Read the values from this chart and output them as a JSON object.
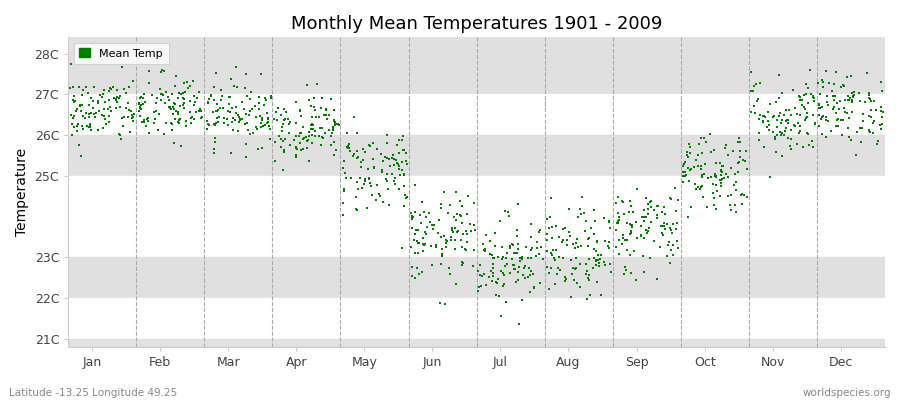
{
  "title": "Monthly Mean Temperatures 1901 - 2009",
  "ylabel": "Temperature",
  "xlabel_bottom_left": "Latitude -13.25 Longitude 49.25",
  "xlabel_bottom_right": "worldspecies.org",
  "ytick_labels": [
    "21C",
    "22C",
    "23C",
    "25C",
    "26C",
    "27C",
    "28C"
  ],
  "ytick_values": [
    21,
    22,
    23,
    25,
    26,
    27,
    28
  ],
  "ylim": [
    20.8,
    28.4
  ],
  "months": [
    "Jan",
    "Feb",
    "Mar",
    "Apr",
    "May",
    "Jun",
    "Jul",
    "Aug",
    "Sep",
    "Oct",
    "Nov",
    "Dec"
  ],
  "dot_color": "#008000",
  "background_color": "#ffffff",
  "band_color": "#e8e8e8",
  "plot_bg_bands": [
    {
      "ymin": 27,
      "ymax": 28.4,
      "color": "#e8e8e8"
    },
    {
      "ymin": 25,
      "ymax": 26,
      "color": "#e8e8e8"
    },
    {
      "ymin": 23,
      "ymax": 23,
      "color": "#ffffff"
    },
    {
      "ymin": 21,
      "ymax": 22,
      "color": "#e8e8e8"
    }
  ],
  "n_years": 109,
  "seed": 42,
  "monthly_means": [
    26.6,
    26.65,
    26.55,
    26.2,
    25.15,
    23.45,
    22.95,
    23.05,
    23.7,
    25.1,
    26.45,
    26.65
  ],
  "monthly_stds": [
    0.42,
    0.43,
    0.4,
    0.4,
    0.55,
    0.55,
    0.55,
    0.55,
    0.55,
    0.52,
    0.52,
    0.44
  ],
  "dashed_line_color": "#aaaaaa",
  "legend_edge_color": "#cccccc"
}
